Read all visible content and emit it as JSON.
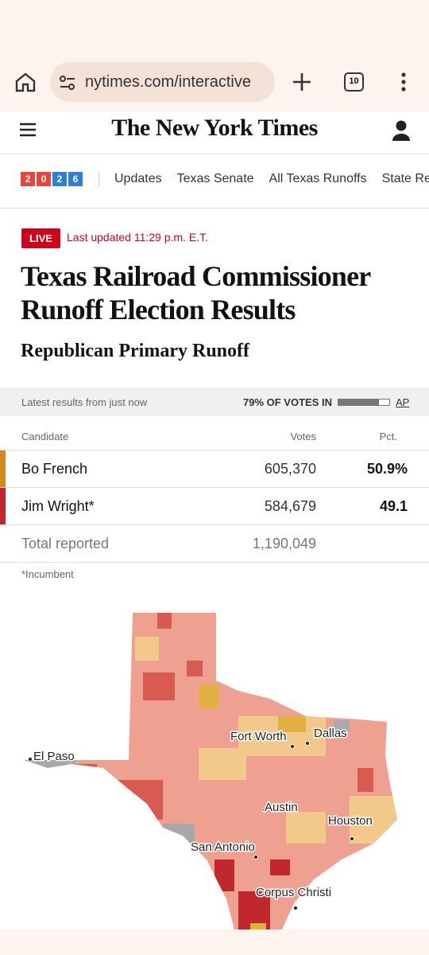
{
  "browser": {
    "url": "nytimes.com/interactive",
    "tab_count": "10"
  },
  "header": {
    "logo": "The New York Times"
  },
  "nav": {
    "badge": [
      "2",
      "0",
      "2",
      "6"
    ],
    "items": [
      "Updates",
      "Texas Senate",
      "All Texas Runoffs",
      "State Re"
    ]
  },
  "article": {
    "live": "LIVE",
    "updated": "Last updated 11:29 p.m. E.T.",
    "title": "Texas Railroad Commissioner Runoff Election Results",
    "subtitle": "Republican Primary Runoff"
  },
  "results": {
    "status": "Latest results from just now",
    "votes_in_label": "79% OF VOTES IN",
    "votes_in_pct": 79,
    "source": "AP",
    "columns": [
      "Candidate",
      "Votes",
      "Pct."
    ],
    "rows": [
      {
        "name": "Bo French",
        "color": "#d4891a",
        "votes": "605,370",
        "pct": "50.9%"
      },
      {
        "name": "Jim Wright*",
        "color": "#c0282e",
        "votes": "584,679",
        "pct": "49.1"
      }
    ],
    "total": {
      "label": "Total reported",
      "votes": "1,190,049"
    },
    "footnote": "*Incumbent"
  },
  "map": {
    "cities": [
      "El Paso",
      "Fort Worth",
      "Dallas",
      "Austin",
      "Houston",
      "San Antonio",
      "Corpus Christi"
    ]
  }
}
